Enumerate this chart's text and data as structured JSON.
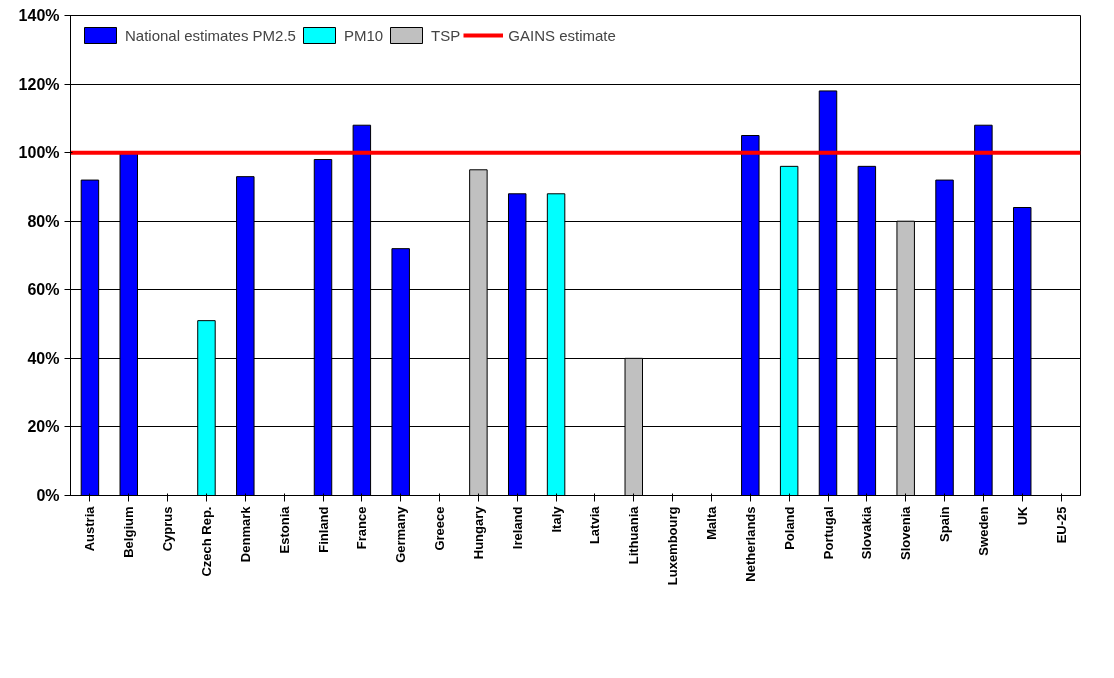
{
  "chart_data": {
    "type": "bar",
    "categories": [
      "Austria",
      "Belgium",
      "Cyprus",
      "Czech Rep.",
      "Denmark",
      "Estonia",
      "Finland",
      "France",
      "Germany",
      "Greece",
      "Hungary",
      "Ireland",
      "Italy",
      "Latvia",
      "Lithuania",
      "Luxembourg",
      "Malta",
      "Netherlands",
      "Poland",
      "Portugal",
      "Slovakia",
      "Slovenia",
      "Spain",
      "Sweden",
      "UK",
      "EU-25"
    ],
    "series": [
      {
        "name": "National estimates PM2.5",
        "color": "#0000ff",
        "values": [
          92,
          100,
          null,
          null,
          93,
          null,
          98,
          108,
          72,
          null,
          null,
          88,
          null,
          null,
          null,
          null,
          null,
          105,
          null,
          118,
          96,
          null,
          92,
          108,
          84,
          null
        ]
      },
      {
        "name": "PM10",
        "color": "#00ffff",
        "values": [
          null,
          null,
          null,
          51,
          null,
          null,
          null,
          null,
          null,
          null,
          null,
          null,
          88,
          null,
          null,
          null,
          null,
          null,
          96,
          null,
          null,
          null,
          null,
          null,
          null,
          null
        ]
      },
      {
        "name": "TSP",
        "color": "#c0c0c0",
        "values": [
          null,
          null,
          null,
          null,
          null,
          null,
          null,
          null,
          null,
          null,
          95,
          null,
          null,
          null,
          40,
          null,
          null,
          null,
          null,
          null,
          null,
          80,
          null,
          null,
          null,
          null
        ]
      }
    ],
    "ref_lines": [
      {
        "axis": "y",
        "value": 100,
        "label": "GAINS estimate",
        "color": "#ff0000"
      }
    ],
    "ylim": [
      0,
      140
    ],
    "yticks": [
      {
        "value": 0,
        "label": "0%"
      },
      {
        "value": 20,
        "label": "20%"
      },
      {
        "value": 40,
        "label": "40%"
      },
      {
        "value": 60,
        "label": "60%"
      },
      {
        "value": 80,
        "label": "80%"
      },
      {
        "value": 100,
        "label": "100%"
      },
      {
        "value": 120,
        "label": "120%"
      },
      {
        "value": 140,
        "label": "140%"
      }
    ],
    "grid": "y",
    "legend": "top left"
  }
}
